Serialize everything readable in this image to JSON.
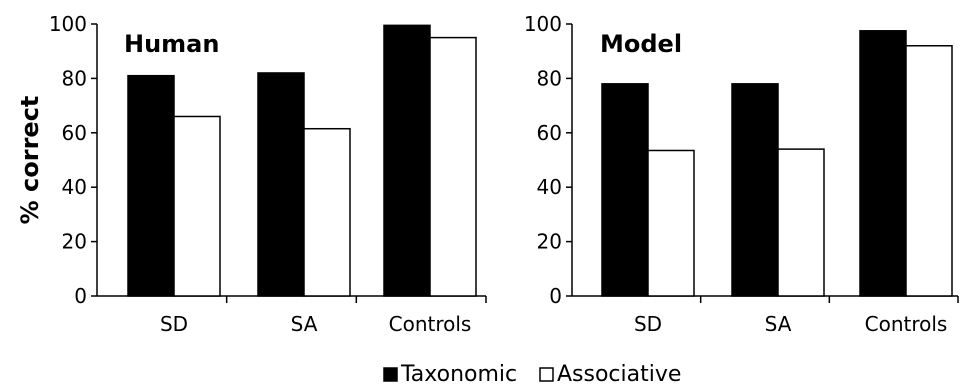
{
  "chart_data": [
    {
      "type": "bar",
      "title": "Human",
      "ylabel": "% correct",
      "xlabel": "",
      "categories": [
        "SD",
        "SA",
        "Controls"
      ],
      "series": [
        {
          "name": "Taxonomic",
          "values": [
            81,
            82,
            99.5
          ],
          "fill": "#000000"
        },
        {
          "name": "Associative",
          "values": [
            66,
            61.5,
            95
          ],
          "fill": "#ffffff"
        }
      ],
      "ylim": [
        0,
        100
      ],
      "yticks": [
        0,
        20,
        40,
        60,
        80,
        100
      ],
      "grid": false
    },
    {
      "type": "bar",
      "title": "Model",
      "ylabel": "",
      "xlabel": "",
      "categories": [
        "SD",
        "SA",
        "Controls"
      ],
      "series": [
        {
          "name": "Taxonomic",
          "values": [
            78,
            78,
            97.5
          ],
          "fill": "#000000"
        },
        {
          "name": "Associative",
          "values": [
            53.5,
            54,
            92
          ],
          "fill": "#ffffff"
        }
      ],
      "ylim": [
        0,
        100
      ],
      "yticks": [
        0,
        20,
        40,
        60,
        80,
        100
      ],
      "grid": false
    }
  ],
  "legend": {
    "placement": "bottom-center",
    "items": [
      {
        "label": "Taxonomic",
        "fill": "#000000"
      },
      {
        "label": "Associative",
        "fill": "#ffffff"
      }
    ]
  }
}
